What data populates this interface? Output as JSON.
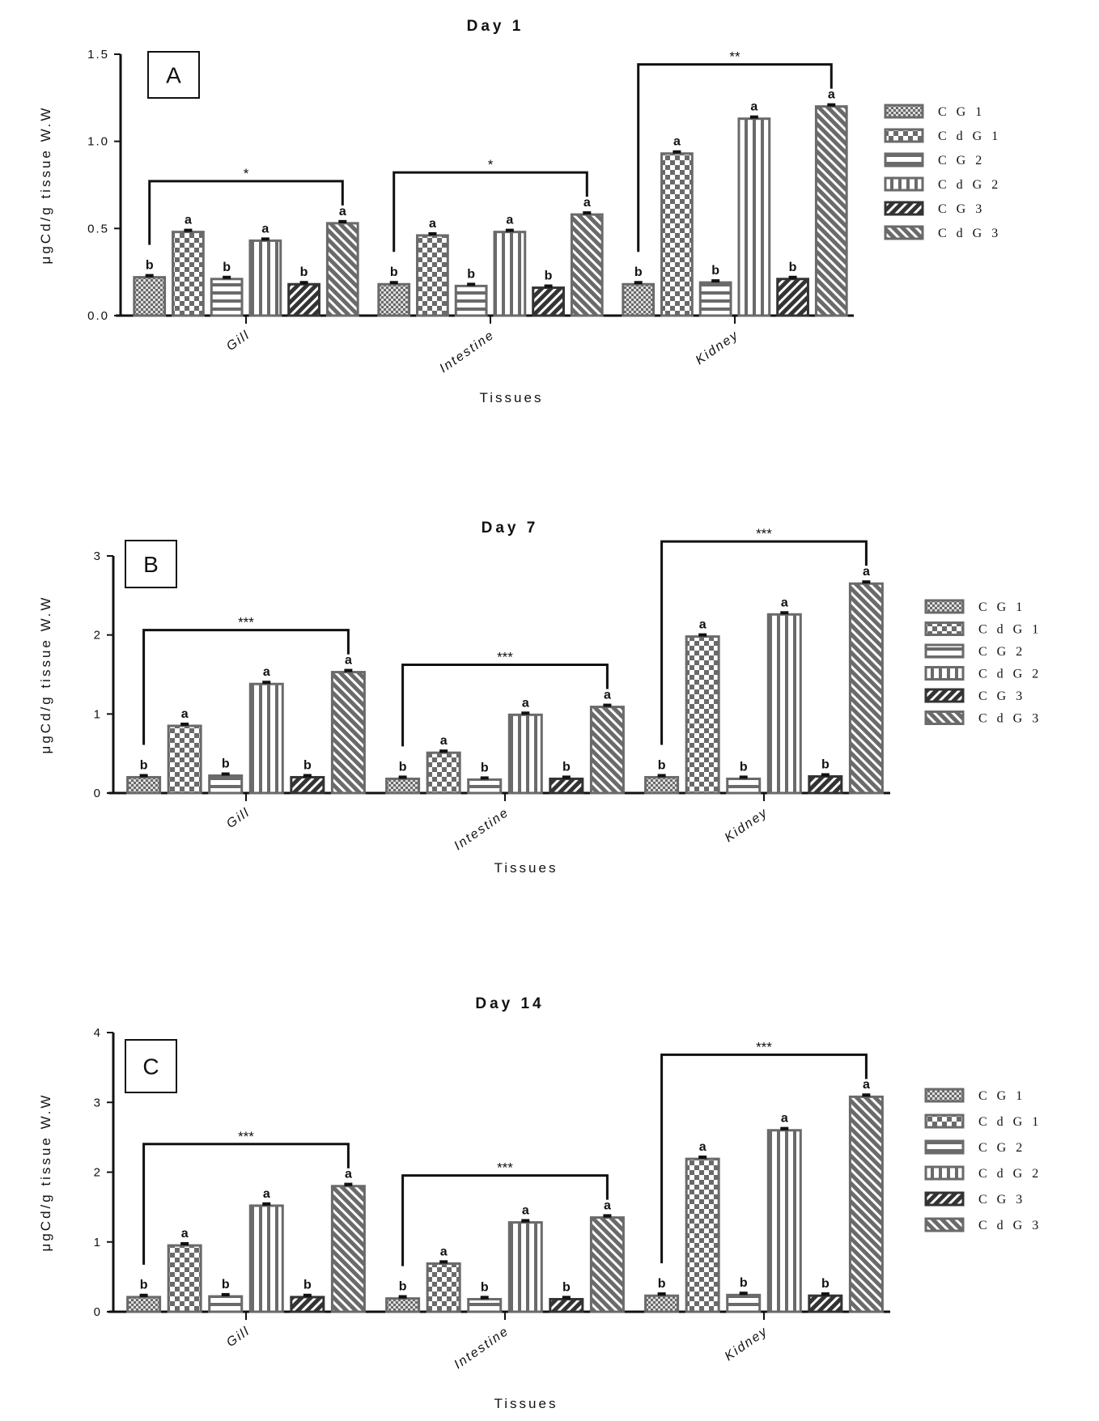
{
  "chart_data": [
    {
      "type": "bar",
      "panel": "A",
      "title": "Day 1",
      "xlabel": "Tissues",
      "ylabel": "μgCd/g tissue W.W",
      "ylim": [
        0,
        1.5
      ],
      "yticks": [
        "0.0",
        "0.5",
        "1.0",
        "1.5"
      ],
      "categories": [
        "Gill",
        "Intestine",
        "Kidney"
      ],
      "series": [
        {
          "name": "C G 1",
          "values": [
            0.22,
            0.18,
            0.18
          ],
          "letters": [
            "b",
            "b",
            "b"
          ]
        },
        {
          "name": "C d G 1",
          "values": [
            0.48,
            0.46,
            0.93
          ],
          "letters": [
            "a",
            "a",
            "a"
          ]
        },
        {
          "name": "C G 2",
          "values": [
            0.21,
            0.17,
            0.19
          ],
          "letters": [
            "b",
            "b",
            "b"
          ]
        },
        {
          "name": "C d G 2",
          "values": [
            0.43,
            0.48,
            1.13
          ],
          "letters": [
            "a",
            "a",
            "a"
          ]
        },
        {
          "name": "C G 3",
          "values": [
            0.18,
            0.16,
            0.21
          ],
          "letters": [
            "b",
            "b",
            "b"
          ]
        },
        {
          "name": "C d G 3",
          "values": [
            0.53,
            0.58,
            1.2
          ],
          "letters": [
            "a",
            "a",
            "a"
          ]
        }
      ],
      "significance": [
        "*",
        "*",
        "**"
      ],
      "legend": "right"
    },
    {
      "type": "bar",
      "panel": "B",
      "title": "Day 7",
      "xlabel": "Tissues",
      "ylabel": "μgCd/g tissue W.W",
      "ylim": [
        0,
        3
      ],
      "yticks": [
        "0",
        "1",
        "2",
        "3"
      ],
      "categories": [
        "Gill",
        "Intestine",
        "Kidney"
      ],
      "series": [
        {
          "name": "C G 1",
          "values": [
            0.2,
            0.18,
            0.2
          ],
          "letters": [
            "b",
            "b",
            "b"
          ]
        },
        {
          "name": "C d G 1",
          "values": [
            0.85,
            0.51,
            1.98
          ],
          "letters": [
            "a",
            "a",
            "a"
          ]
        },
        {
          "name": "C G 2",
          "values": [
            0.22,
            0.17,
            0.18
          ],
          "letters": [
            "b",
            "b",
            "b"
          ]
        },
        {
          "name": "C d G 2",
          "values": [
            1.38,
            0.99,
            2.26
          ],
          "letters": [
            "a",
            "a",
            "a"
          ]
        },
        {
          "name": "C G 3",
          "values": [
            0.2,
            0.18,
            0.21
          ],
          "letters": [
            "b",
            "b",
            "b"
          ]
        },
        {
          "name": "C d G 3",
          "values": [
            1.53,
            1.09,
            2.65
          ],
          "letters": [
            "a",
            "a",
            "a"
          ]
        }
      ],
      "significance": [
        "***",
        "***",
        "***"
      ],
      "legend": "right"
    },
    {
      "type": "bar",
      "panel": "C",
      "title": "Day 14",
      "xlabel": "Tissues",
      "ylabel": "μgCd/g tissue W.W",
      "ylim": [
        0,
        4
      ],
      "yticks": [
        "0",
        "1",
        "2",
        "3",
        "4"
      ],
      "categories": [
        "Gill",
        "Intestine",
        "Kidney"
      ],
      "series": [
        {
          "name": "C G 1",
          "values": [
            0.21,
            0.19,
            0.23
          ],
          "letters": [
            "b",
            "b",
            "b"
          ]
        },
        {
          "name": "C d G 1",
          "values": [
            0.95,
            0.69,
            2.19
          ],
          "letters": [
            "a",
            "a",
            "a"
          ]
        },
        {
          "name": "C G 2",
          "values": [
            0.22,
            0.18,
            0.24
          ],
          "letters": [
            "b",
            "b",
            "b"
          ]
        },
        {
          "name": "C d G 2",
          "values": [
            1.52,
            1.28,
            2.6
          ],
          "letters": [
            "a",
            "a",
            "a"
          ]
        },
        {
          "name": "C G 3",
          "values": [
            0.21,
            0.18,
            0.23
          ],
          "letters": [
            "b",
            "b",
            "b"
          ]
        },
        {
          "name": "C d G 3",
          "values": [
            1.8,
            1.35,
            3.08
          ],
          "letters": [
            "a",
            "a",
            "a"
          ]
        }
      ],
      "significance": [
        "***",
        "***",
        "***"
      ],
      "legend": "right"
    }
  ],
  "colors": {
    "bar": "#6a6a6a",
    "bar_dark": "#333333",
    "axis": "#111111"
  }
}
